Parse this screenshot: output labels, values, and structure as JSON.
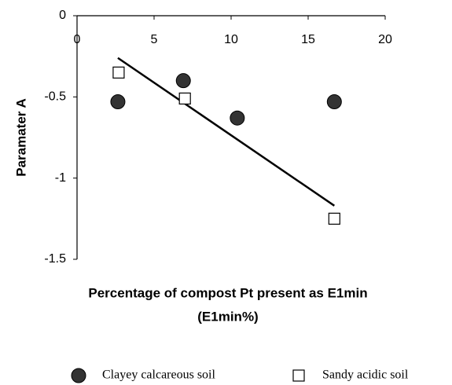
{
  "chart_data": {
    "type": "scatter",
    "xlabel": [
      "Percentage of compost Pt present as E1min",
      "(E1min%)"
    ],
    "ylabel": "Paramater A",
    "xlim": [
      0,
      20
    ],
    "xticks": [
      0,
      5,
      10,
      15,
      20
    ],
    "ylim": [
      -1.5,
      0
    ],
    "yticks": [
      0,
      -0.5,
      -1,
      -1.5
    ],
    "series": [
      {
        "name": "Clayey calcareous soil",
        "color": "#333333",
        "marker": "circle",
        "x": [
          2.65,
          6.9,
          10.4,
          16.7
        ],
        "values": [
          -0.53,
          -0.4,
          -0.63,
          -0.53
        ]
      },
      {
        "name": "Sandy acidic soil",
        "color": "#ffffff",
        "marker": "square",
        "x": [
          2.7,
          7.0,
          16.7
        ],
        "values": [
          -0.35,
          -0.51,
          -1.25
        ]
      }
    ],
    "trendline": {
      "x": [
        2.65,
        16.7
      ],
      "y": [
        -0.26,
        -1.17
      ],
      "color": "#000000"
    },
    "legend": "bottom"
  }
}
